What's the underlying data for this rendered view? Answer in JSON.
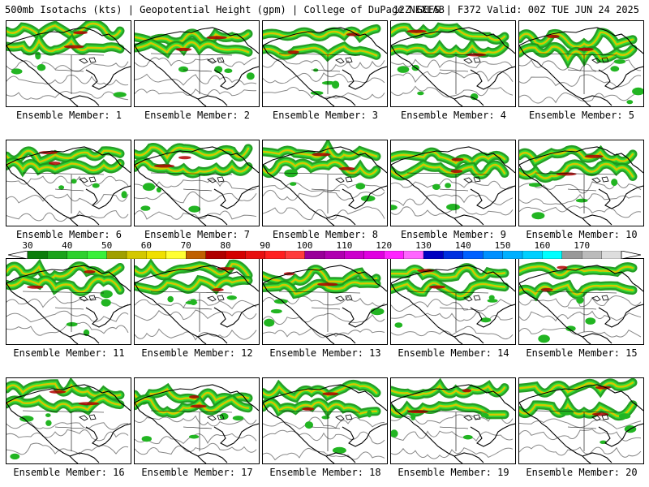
{
  "header": {
    "title_left": "500mb Isotachs (kts) | Geopotential Height (gpm) | College of DuPage NEXLAB",
    "title_right": "12Z GEFS | F372 Valid: 00Z TUE JUN 24 2025"
  },
  "members": [
    {
      "label": "Ensemble Member: 1"
    },
    {
      "label": "Ensemble Member: 2"
    },
    {
      "label": "Ensemble Member: 3"
    },
    {
      "label": "Ensemble Member: 4"
    },
    {
      "label": "Ensemble Member: 5"
    },
    {
      "label": "Ensemble Member: 6"
    },
    {
      "label": "Ensemble Member: 7"
    },
    {
      "label": "Ensemble Member: 8"
    },
    {
      "label": "Ensemble Member: 9"
    },
    {
      "label": "Ensemble Member: 10"
    },
    {
      "label": "Ensemble Member: 11"
    },
    {
      "label": "Ensemble Member: 12"
    },
    {
      "label": "Ensemble Member: 13"
    },
    {
      "label": "Ensemble Member: 14"
    },
    {
      "label": "Ensemble Member: 15"
    },
    {
      "label": "Ensemble Member: 16"
    },
    {
      "label": "Ensemble Member: 17"
    },
    {
      "label": "Ensemble Member: 18"
    },
    {
      "label": "Ensemble Member: 19"
    },
    {
      "label": "Ensemble Member: 20"
    }
  ],
  "colorbar": {
    "ticks": [
      "30",
      "40",
      "50",
      "60",
      "70",
      "80",
      "90",
      "100",
      "110",
      "120",
      "130",
      "140",
      "150",
      "160",
      "170"
    ],
    "colors": [
      "#0a7d0a",
      "#1aa31a",
      "#2dd12d",
      "#39f039",
      "#a0a000",
      "#d4c800",
      "#f0e000",
      "#ffff33",
      "#c06000",
      "#b00000",
      "#d40000",
      "#e81010",
      "#ff2020",
      "#ff3c3c",
      "#990099",
      "#b000b0",
      "#cc00cc",
      "#e000e0",
      "#ff22ff",
      "#ff66ff",
      "#0000c0",
      "#0030e0",
      "#0060ff",
      "#0090ff",
      "#00b0ff",
      "#00d0ff",
      "#00ffff",
      "#999999",
      "#bbbbbb",
      "#dddddd"
    ]
  }
}
